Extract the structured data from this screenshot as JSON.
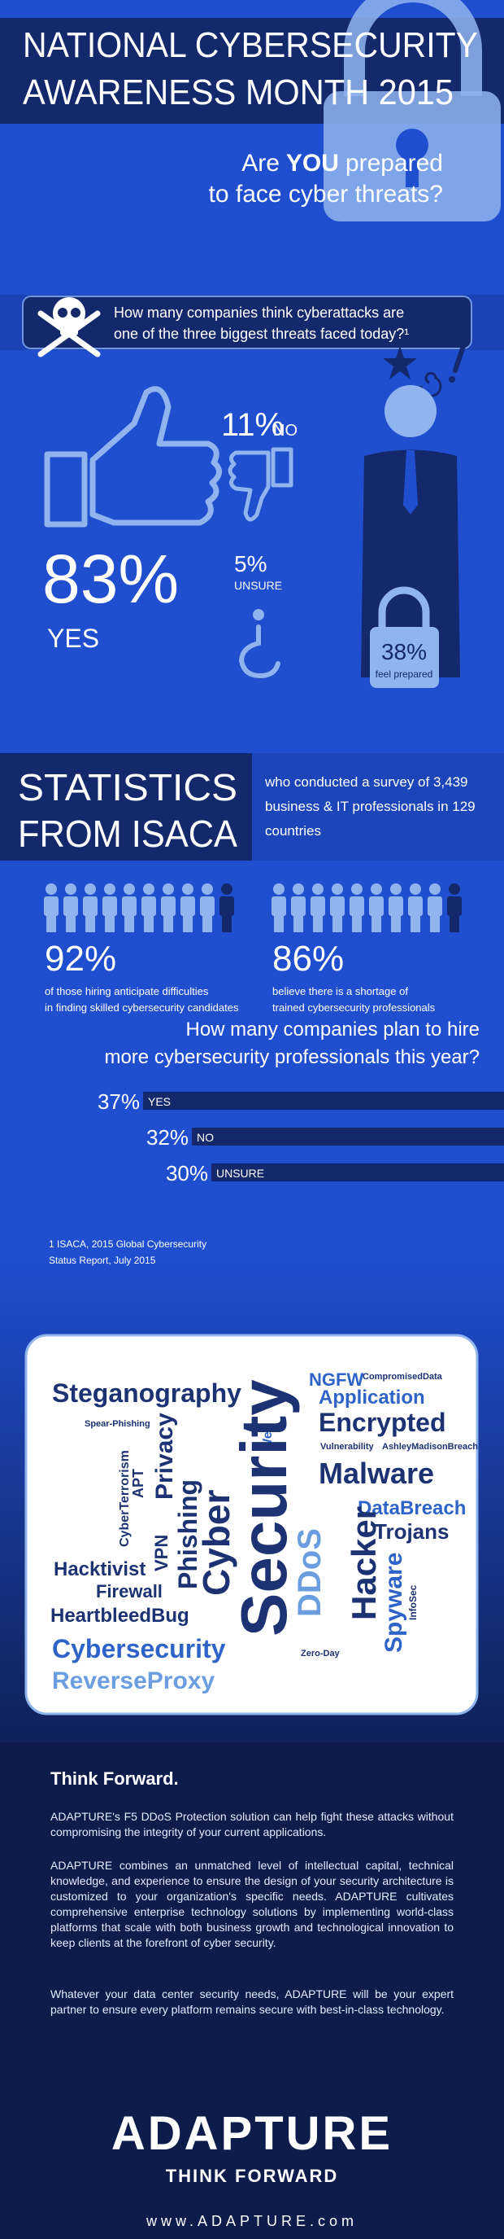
{
  "header": {
    "title_lines": [
      "NATIONAL CYBERSECURITY",
      "AWARENESS MONTH 2015"
    ],
    "question_line1": [
      "Are",
      "YOU",
      "prepared"
    ],
    "question_line2": "to face cyber threats?"
  },
  "threats_survey": {
    "question_lines": [
      "How many companies think cyberattacks are",
      "one of the three biggest threats faced today?¹"
    ],
    "yes": {
      "value": "83%",
      "label": "YES"
    },
    "no": {
      "value": "11%",
      "label": "NO"
    },
    "unsure": {
      "value": "5%",
      "label": "UNSURE"
    },
    "prepared": {
      "value": "38%",
      "label": "feel prepared"
    }
  },
  "isaca": {
    "title_lines": [
      "STATISTICS",
      "FROM ISACA"
    ],
    "description_lines": [
      "who conducted a survey of 3,439",
      "business & IT professionals in 129",
      "countries"
    ],
    "stats": [
      {
        "value": "92%",
        "text_lines": [
          "of those hiring anticipate difficulties",
          "in finding skilled cybersecurity candidates"
        ]
      },
      {
        "value": "86%",
        "text_lines": [
          "believe there is a shortage of",
          "trained cybersecurity professionals"
        ]
      }
    ]
  },
  "hiring": {
    "question_lines": [
      "How many companies plan to hire",
      "more cybersecurity professionals this year?"
    ],
    "categories": [
      "YES",
      "NO",
      "UNSURE"
    ],
    "values": [
      37,
      32,
      30
    ],
    "value_labels": [
      "37%",
      "32%",
      "30%"
    ]
  },
  "footnote_lines": [
    "1 ISACA, 2015 Global Cybersecurity",
    "Status Report, July 2015"
  ],
  "word_cloud": [
    "Steganography",
    "Spear-Phishing",
    "Privacy",
    "Web",
    "Security",
    "Cyber",
    "Phishing",
    "VPN",
    "APT",
    "CyberTerrorism",
    "Hacktivist",
    "Firewall",
    "HeartbleedBug",
    "Cybersecurity",
    "ReverseProxy",
    "DDoS",
    "Zero-Day",
    "NGFW",
    "CompromisedData",
    "Application",
    "Encrypted",
    "Vulnerability",
    "AshleyMadisonBreach",
    "Malware",
    "DataBreach",
    "Trojans",
    "Hacker",
    "Spyware",
    "InfoSec"
  ],
  "footer": {
    "heading": "Think Forward.",
    "paragraphs": [
      "ADAPTURE's F5 DDoS Protection solution can help fight these attacks without compromising the integrity of your current applications.",
      "ADAPTURE combines an unmatched level of intellectual capital, technical knowledge, and experience to ensure the design of your security architecture is customized to your organization's specific needs. ADAPTURE cultivates comprehensive enterprise technology solutions by implementing world-class platforms that scale with both business growth and technological innovation to keep clients at the forefront of cyber security.",
      "Whatever your data center security needs, ADAPTURE will be your expert partner to ensure every platform remains secure with best-in-class technology."
    ],
    "logo": "ADAPTURE",
    "tagline": "THINK FORWARD",
    "url": "www.ADAPTURE.com"
  }
}
